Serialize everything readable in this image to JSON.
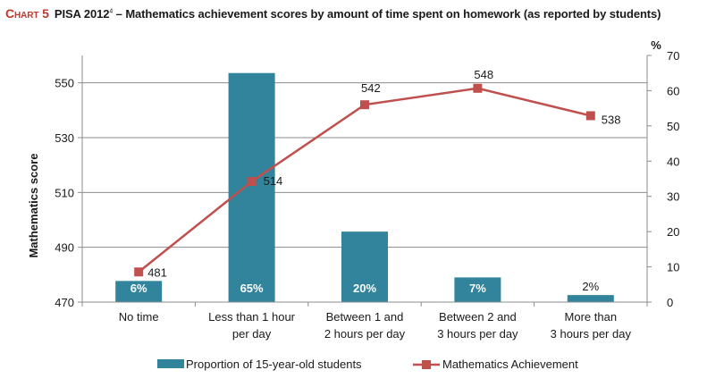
{
  "title": {
    "chart_number": "Chart 5",
    "sup": "4",
    "prefix": "PISA 2012",
    "text": " – Mathematics achievement scores by amount of time spent on homework (as reported by students)"
  },
  "chart_data": {
    "type": "bar+line",
    "categories": [
      [
        "No time"
      ],
      [
        "Less than 1 hour",
        "per day"
      ],
      [
        "Between 1 and",
        "2 hours per day"
      ],
      [
        "Between 2 and",
        "3 hours per day"
      ],
      [
        "More than",
        "3 hours per day"
      ]
    ],
    "series": [
      {
        "name": "Proportion of 15-year-old students",
        "type": "bar",
        "axis": "right",
        "values": [
          6,
          65,
          20,
          7,
          2
        ],
        "labels": [
          "6%",
          "65%",
          "20%",
          "7%",
          "2%"
        ],
        "color": "#31849b"
      },
      {
        "name": "Mathematics Achievement",
        "type": "line",
        "axis": "left",
        "values": [
          481,
          514,
          542,
          548,
          538
        ],
        "labels": [
          "481",
          "514",
          "542",
          "548",
          "538"
        ],
        "color": "#c0504d"
      }
    ],
    "ylabel": "Mathematics score",
    "y2label": "%",
    "ylim": [
      470,
      560
    ],
    "yticks": [
      470,
      490,
      510,
      530,
      550
    ],
    "y2lim": [
      0,
      70
    ],
    "y2ticks": [
      0,
      10,
      20,
      30,
      40,
      50,
      60,
      70
    ],
    "grid": true,
    "legend": "bottom"
  }
}
